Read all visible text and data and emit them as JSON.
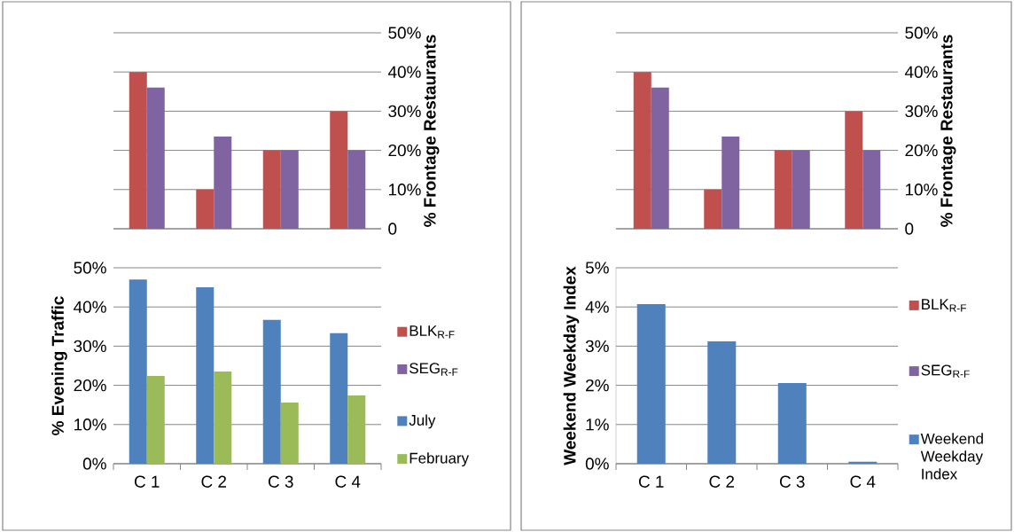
{
  "chart_data": [
    {
      "type": "bar",
      "categories": [
        null,
        null,
        null,
        null
      ],
      "series": [
        {
          "name": "BLK$_{R-F}$",
          "color": "#c0504d",
          "values": [
            40,
            10,
            20,
            30
          ]
        },
        {
          "name": "SEG$_{R-F}$",
          "color": "#8064a2",
          "values": [
            36,
            23.5,
            20,
            20
          ]
        }
      ],
      "ylim": [
        0,
        50
      ],
      "yticks": [
        0,
        {
          "value": 10,
          "label": "10%"
        },
        {
          "value": 20,
          "label": "20%"
        },
        {
          "value": 30,
          "label": "30%"
        },
        {
          "value": 40,
          "label": "40%"
        },
        {
          "value": 50,
          "label": "50%"
        }
      ],
      "ylabel": "% Frontage Restaurants",
      "grid": "y",
      "legend": "right",
      "tick_labels": "y"
    },
    {
      "type": "bar",
      "categories": [
        "C 1",
        "C 2",
        "C 3",
        "C 4"
      ],
      "series": [
        {
          "name": "July",
          "color": "#4f81bd",
          "values": [
            47,
            45,
            36.7,
            33.3
          ]
        },
        {
          "name": "February",
          "color": "#9bbb59",
          "values": [
            22.4,
            23.5,
            15.6,
            17.4
          ]
        }
      ],
      "ylim": [
        0,
        50
      ],
      "yticks": [
        {
          "value": 0,
          "label": "0%"
        },
        {
          "value": 10,
          "label": "10%"
        },
        {
          "value": 20,
          "label": "20%"
        },
        {
          "value": 30,
          "label": "30%"
        },
        {
          "value": 40,
          "label": "40%"
        },
        {
          "value": 50,
          "label": "50%"
        }
      ],
      "ylabel": "% Evening Traffic",
      "grid": "y",
      "legend": "right"
    },
    {
      "type": "bar",
      "categories": [
        null,
        null,
        null,
        null
      ],
      "series": [
        {
          "name": "BLK$_{R-F}$",
          "color": "#c0504d",
          "values": [
            40,
            10,
            20,
            30
          ]
        },
        {
          "name": "SEG$_{R-F}$",
          "color": "#8064a2",
          "values": [
            36,
            23.5,
            20,
            20
          ]
        }
      ],
      "ylim": [
        0,
        50
      ],
      "yticks": [
        0,
        {
          "value": 10,
          "label": "10%"
        },
        {
          "value": 20,
          "label": "20%"
        },
        {
          "value": 30,
          "label": "30%"
        },
        {
          "value": 40,
          "label": "40%"
        },
        {
          "value": 50,
          "label": "50%"
        }
      ],
      "ylabel": "% Frontage Restaurants",
      "grid": "y",
      "legend": "right",
      "tick_labels": "y"
    },
    {
      "type": "bar",
      "categories": [
        "C 1",
        "C 2",
        "C 3",
        "C 4"
      ],
      "series": [
        {
          "name": "Weekend Weekday Index",
          "color": "#4f81bd",
          "values": [
            4.07,
            3.12,
            2.06,
            0.05
          ]
        }
      ],
      "ylim": [
        0,
        5
      ],
      "yticks": [
        {
          "value": 0,
          "label": "0%"
        },
        {
          "value": 1,
          "label": "1%"
        },
        {
          "value": 2,
          "label": "2%"
        },
        {
          "value": 3,
          "label": "3%"
        },
        {
          "value": 4,
          "label": "4%"
        },
        {
          "value": 5,
          "label": "5%"
        }
      ],
      "ylabel": "Weekend Weekday Index",
      "grid": "y",
      "legend": "right"
    }
  ]
}
